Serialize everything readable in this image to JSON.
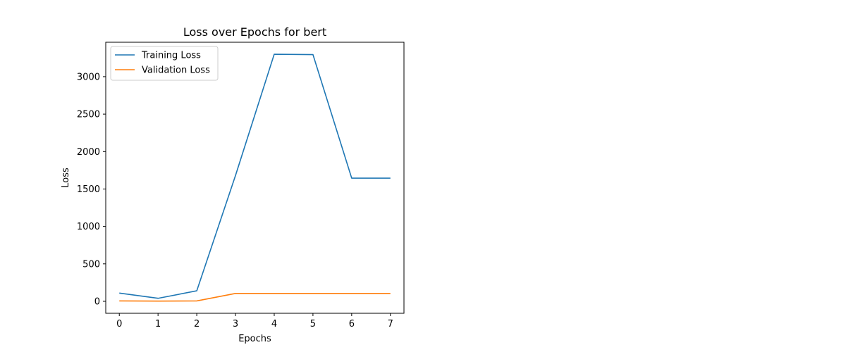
{
  "chart_data": {
    "type": "line",
    "title": "Loss over Epochs for bert",
    "xlabel": "Epochs",
    "ylabel": "Loss",
    "x": [
      0,
      1,
      2,
      3,
      4,
      5,
      6,
      7
    ],
    "xticks": [
      0,
      1,
      2,
      3,
      4,
      5,
      6,
      7
    ],
    "yticks": [
      0,
      500,
      1000,
      1500,
      2000,
      2500,
      3000
    ],
    "xlim": [
      -0.35,
      7.35
    ],
    "ylim": [
      -160,
      3460
    ],
    "grid": false,
    "legend_position": "top-left",
    "series": [
      {
        "name": "Training Loss",
        "color": "#1f77b4",
        "values": [
          110,
          40,
          140,
          1680,
          3300,
          3295,
          1645,
          1645
        ]
      },
      {
        "name": "Validation Loss",
        "color": "#ff7f0e",
        "values": [
          5,
          3,
          5,
          105,
          105,
          105,
          105,
          105
        ]
      }
    ]
  }
}
